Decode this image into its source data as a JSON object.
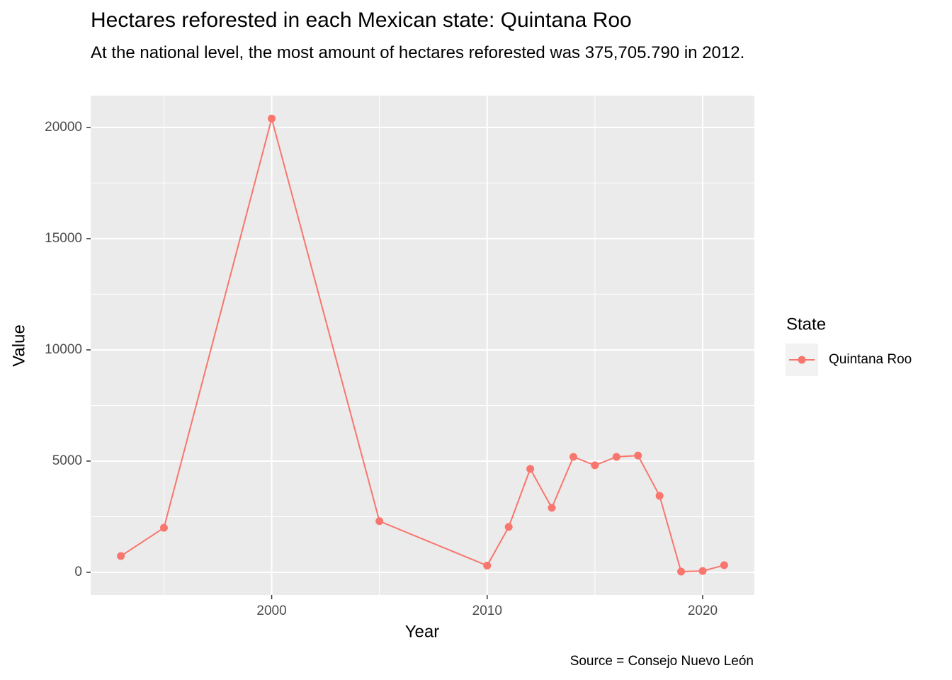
{
  "chart_data": {
    "type": "line",
    "title": "Hectares reforested in each Mexican state: Quintana Roo",
    "subtitle": "At the national level, the most amount of hectares reforested was 375,705.790 in 2012.",
    "x_label": "Year",
    "y_label": "Value",
    "caption": "Source = Consejo Nuevo León",
    "legend_title": "State",
    "legend_position": "right",
    "x": [
      1993,
      1995,
      2000,
      2005,
      2010,
      2011,
      2012,
      2013,
      2014,
      2015,
      2016,
      2017,
      2018,
      2019,
      2020,
      2021
    ],
    "series": [
      {
        "name": "Quintana Roo",
        "color": "#F8766D",
        "values": [
          730,
          2000,
          20400,
          2300,
          300,
          2040,
          4650,
          2900,
          5190,
          4810,
          5190,
          5250,
          3440,
          30,
          60,
          320
        ]
      }
    ],
    "xlim": [
      1991.6,
      2022.4
    ],
    "xticks": [
      2000,
      2010,
      2020
    ],
    "ylim": [
      -1020,
      21430
    ],
    "yticks": [
      0,
      5000,
      10000,
      15000,
      20000
    ],
    "grid": true,
    "minor_grid": true
  }
}
